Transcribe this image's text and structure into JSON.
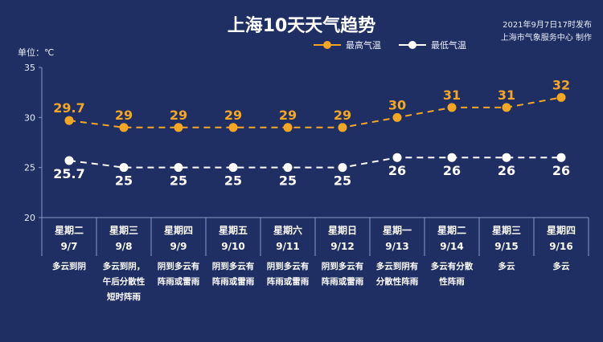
{
  "header": {
    "title": "上海10天天气趋势",
    "publish_time": "2021年9月7日17时发布",
    "publisher": "上海市气象服务中心 制作",
    "unit_label": "单位：℃"
  },
  "colors": {
    "background": "#1f2f63",
    "high": "#f5a623",
    "low": "#ffffff",
    "grid": "#8a97c4"
  },
  "chart_data": {
    "type": "line",
    "title": "上海10天天气趋势",
    "xlabel": "",
    "ylabel": "单位：℃",
    "ylim": [
      20,
      35
    ],
    "yticks": [
      20,
      25,
      30,
      35
    ],
    "grid": false,
    "legend_position": "top",
    "categories": [
      {
        "weekday": "星期二",
        "date": "9/7",
        "weather": "多云到阴"
      },
      {
        "weekday": "星期三",
        "date": "9/8",
        "weather": "多云到阴，午后分散性短时阵雨"
      },
      {
        "weekday": "星期四",
        "date": "9/9",
        "weather": "阴到多云有阵雨或雷雨"
      },
      {
        "weekday": "星期五",
        "date": "9/10",
        "weather": "阴到多云有阵雨或雷雨"
      },
      {
        "weekday": "星期六",
        "date": "9/11",
        "weather": "阴到多云有阵雨或雷雨"
      },
      {
        "weekday": "星期日",
        "date": "9/12",
        "weather": "阴到多云有阵雨或雷雨"
      },
      {
        "weekday": "星期一",
        "date": "9/13",
        "weather": "多云到阴有分散性阵雨"
      },
      {
        "weekday": "星期二",
        "date": "9/14",
        "weather": "多云有分散性阵雨"
      },
      {
        "weekday": "星期三",
        "date": "9/15",
        "weather": "多云"
      },
      {
        "weekday": "星期四",
        "date": "9/16",
        "weather": "多云"
      }
    ],
    "weather_lines": [
      [
        "多云到阴"
      ],
      [
        "多云到阴，",
        "午后分散性",
        "短时阵雨"
      ],
      [
        "阴到多云有",
        "阵雨或雷雨"
      ],
      [
        "阴到多云有",
        "阵雨或雷雨"
      ],
      [
        "阴到多云有",
        "阵雨或雷雨"
      ],
      [
        "阴到多云有",
        "阵雨或雷雨"
      ],
      [
        "多云到阴有",
        "分散性阵雨"
      ],
      [
        "多云有分散",
        "性阵雨"
      ],
      [
        "多云"
      ],
      [
        "多云"
      ]
    ],
    "series": [
      {
        "name": "最高气温",
        "values": [
          29.7,
          29,
          29,
          29,
          29,
          29,
          30,
          31,
          31,
          32
        ]
      },
      {
        "name": "最低气温",
        "values": [
          25.7,
          25,
          25,
          25,
          25,
          25,
          26,
          26,
          26,
          26
        ]
      }
    ]
  }
}
